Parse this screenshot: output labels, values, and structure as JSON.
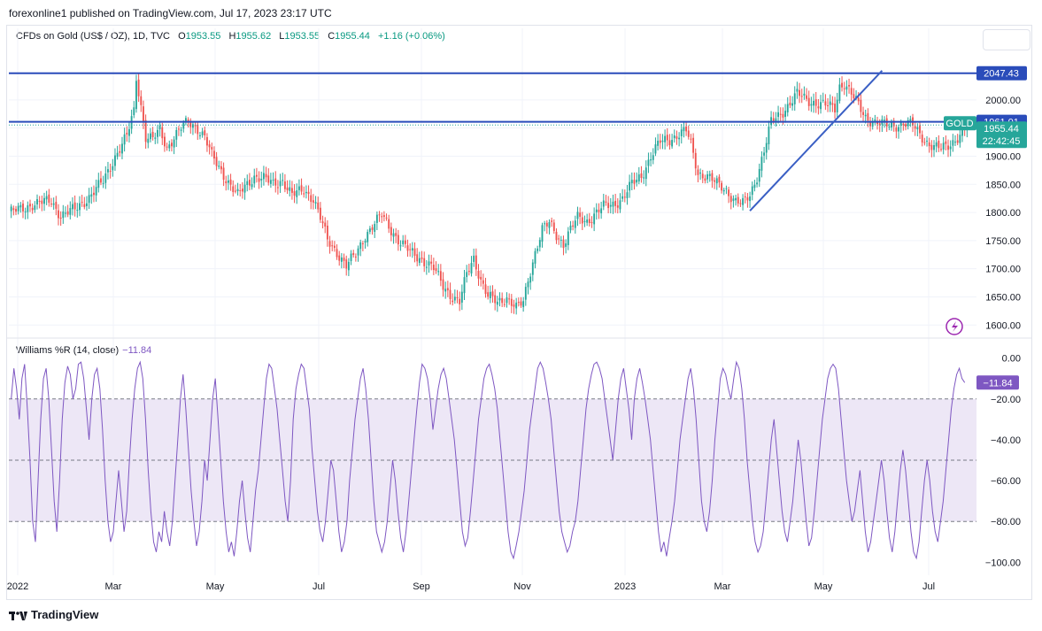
{
  "header": {
    "published": "forexonline1 published on TradingView.com, Jul 17, 2023 23:17 UTC"
  },
  "legend": {
    "title": "CFDs on Gold (US$ / OZ), 1D, TVC",
    "o_label": "O",
    "o": "1953.55",
    "h_label": "H",
    "h": "1955.62",
    "l_label": "L",
    "l": "1953.55",
    "c_label": "C",
    "c": "1955.44",
    "change": "+1.16 (+0.06%)"
  },
  "indicator": {
    "label": "Williams %R (14, close)",
    "value": "−11.84"
  },
  "footer": {
    "brand": "TradingView"
  },
  "colors": {
    "up": "#26a69a",
    "down": "#ef5350",
    "hline": "#2a4cba",
    "trend": "#3a5fc4",
    "wr": "#7e57c2",
    "band": "#ede7f6"
  },
  "chart_data": {
    "type": "candlestick",
    "symbol": "GOLD",
    "timeframe": "1D",
    "x_labels": [
      "2022",
      "Mar",
      "May",
      "Jul",
      "Sep",
      "Nov",
      "2023",
      "Mar",
      "May",
      "Jul"
    ],
    "price_axis": [
      "2000.00",
      "1950.00",
      "1900.00",
      "1850.00",
      "1800.00",
      "1750.00",
      "1700.00",
      "1650.00",
      "1600.00"
    ],
    "ylim": [
      1580,
      2080
    ],
    "close_path": [
      [
        0,
        1800
      ],
      [
        5,
        1805
      ],
      [
        10,
        1815
      ],
      [
        18,
        1820
      ],
      [
        22,
        1795
      ],
      [
        28,
        1805
      ],
      [
        34,
        1828
      ],
      [
        40,
        1855
      ],
      [
        45,
        1900
      ],
      [
        50,
        1935
      ],
      [
        53,
        1980
      ],
      [
        54,
        2040
      ],
      [
        56,
        1990
      ],
      [
        58,
        1935
      ],
      [
        61,
        1930
      ],
      [
        64,
        1945
      ],
      [
        67,
        1915
      ],
      [
        70,
        1935
      ],
      [
        73,
        1950
      ],
      [
        76,
        1960
      ],
      [
        80,
        1950
      ],
      [
        83,
        1935
      ],
      [
        86,
        1900
      ],
      [
        89,
        1880
      ],
      [
        93,
        1855
      ],
      [
        97,
        1830
      ],
      [
        100,
        1845
      ],
      [
        104,
        1865
      ],
      [
        108,
        1860
      ],
      [
        112,
        1850
      ],
      [
        116,
        1858
      ],
      [
        120,
        1830
      ],
      [
        125,
        1840
      ],
      [
        129,
        1825
      ],
      [
        132,
        1790
      ],
      [
        135,
        1750
      ],
      [
        139,
        1730
      ],
      [
        143,
        1705
      ],
      [
        147,
        1725
      ],
      [
        151,
        1760
      ],
      [
        155,
        1780
      ],
      [
        158,
        1795
      ],
      [
        162,
        1770
      ],
      [
        166,
        1745
      ],
      [
        170,
        1730
      ],
      [
        174,
        1720
      ],
      [
        177,
        1710
      ],
      [
        180,
        1700
      ],
      [
        184,
        1670
      ],
      [
        188,
        1650
      ],
      [
        191,
        1640
      ],
      [
        194,
        1690
      ],
      [
        197,
        1720
      ],
      [
        200,
        1680
      ],
      [
        203,
        1650
      ],
      [
        207,
        1640
      ],
      [
        211,
        1650
      ],
      [
        215,
        1630
      ],
      [
        218,
        1640
      ],
      [
        220,
        1680
      ],
      [
        223,
        1730
      ],
      [
        226,
        1770
      ],
      [
        229,
        1780
      ],
      [
        232,
        1760
      ],
      [
        235,
        1745
      ],
      [
        238,
        1770
      ],
      [
        241,
        1790
      ],
      [
        245,
        1785
      ],
      [
        249,
        1800
      ],
      [
        252,
        1810
      ],
      [
        256,
        1815
      ],
      [
        260,
        1825
      ],
      [
        264,
        1850
      ],
      [
        268,
        1865
      ],
      [
        272,
        1900
      ],
      [
        276,
        1925
      ],
      [
        280,
        1930
      ],
      [
        284,
        1940
      ],
      [
        287,
        1945
      ],
      [
        289,
        1920
      ],
      [
        292,
        1870
      ],
      [
        296,
        1865
      ],
      [
        300,
        1850
      ],
      [
        304,
        1840
      ],
      [
        308,
        1820
      ],
      [
        311,
        1815
      ],
      [
        314,
        1830
      ],
      [
        317,
        1865
      ],
      [
        320,
        1910
      ],
      [
        323,
        1960
      ],
      [
        327,
        1975
      ],
      [
        331,
        1995
      ],
      [
        334,
        2010
      ],
      [
        338,
        2000
      ],
      [
        342,
        1995
      ],
      [
        346,
        1990
      ],
      [
        350,
        1985
      ],
      [
        352,
        2025
      ],
      [
        354,
        2030
      ],
      [
        357,
        2010
      ],
      [
        360,
        1990
      ],
      [
        363,
        1970
      ],
      [
        367,
        1960
      ],
      [
        371,
        1955
      ],
      [
        375,
        1955
      ],
      [
        379,
        1958
      ],
      [
        383,
        1955
      ],
      [
        386,
        1940
      ],
      [
        389,
        1925
      ],
      [
        392,
        1915
      ],
      [
        395,
        1913
      ],
      [
        398,
        1920
      ],
      [
        401,
        1930
      ],
      [
        404,
        1940
      ],
      [
        406,
        1955
      ]
    ],
    "support_lines": [
      {
        "label": "2047.43",
        "price": 2047.43
      },
      {
        "label": "1961.01",
        "price": 1961.01
      }
    ],
    "trendline": {
      "from": [
        314,
        1803
      ],
      "to": [
        370,
        2052
      ]
    },
    "last_price": {
      "symbol_label": "GOLD",
      "price": "1955.44",
      "countdown": "22:42:45"
    },
    "williams_r": {
      "axis": [
        "0.00",
        "−20.00",
        "−40.00",
        "−60.00",
        "−80.00",
        "−100.00"
      ],
      "ylim": [
        -102,
        2
      ],
      "levels": [
        -20,
        -50,
        -80
      ],
      "values": [
        -20,
        -5,
        -15,
        -30,
        -10,
        -3,
        -25,
        -50,
        -80,
        -90,
        -60,
        -30,
        -10,
        -5,
        -20,
        -45,
        -70,
        -85,
        -60,
        -30,
        -12,
        -4,
        -8,
        -20,
        -15,
        -3,
        -2,
        -10,
        -25,
        -40,
        -20,
        -8,
        -5,
        -15,
        -35,
        -60,
        -80,
        -90,
        -85,
        -70,
        -55,
        -70,
        -85,
        -75,
        -50,
        -30,
        -15,
        -5,
        -2,
        -10,
        -30,
        -55,
        -75,
        -90,
        -95,
        -85,
        -90,
        -75,
        -85,
        -92,
        -80,
        -60,
        -40,
        -20,
        -8,
        -25,
        -45,
        -65,
        -80,
        -92,
        -85,
        -70,
        -50,
        -60,
        -40,
        -20,
        -10,
        -30,
        -50,
        -70,
        -85,
        -95,
        -90,
        -97,
        -85,
        -70,
        -60,
        -75,
        -88,
        -95,
        -80,
        -65,
        -55,
        -40,
        -25,
        -10,
        -3,
        -5,
        -15,
        -25,
        -40,
        -55,
        -70,
        -80,
        -60,
        -30,
        -15,
        -8,
        -3,
        -5,
        -15,
        -25,
        -45,
        -60,
        -75,
        -85,
        -90,
        -80,
        -65,
        -50,
        -55,
        -70,
        -85,
        -95,
        -90,
        -80,
        -60,
        -45,
        -30,
        -20,
        -10,
        -5,
        -15,
        -30,
        -50,
        -70,
        -85,
        -90,
        -95,
        -90,
        -80,
        -65,
        -50,
        -60,
        -75,
        -88,
        -95,
        -85,
        -70,
        -55,
        -40,
        -25,
        -12,
        -3,
        -5,
        -10,
        -20,
        -35,
        -25,
        -15,
        -8,
        -5,
        -10,
        -20,
        -30,
        -40,
        -55,
        -70,
        -85,
        -92,
        -88,
        -75,
        -60,
        -45,
        -30,
        -20,
        -10,
        -5,
        -3,
        -8,
        -15,
        -25,
        -40,
        -55,
        -70,
        -85,
        -95,
        -98,
        -92,
        -85,
        -75,
        -65,
        -50,
        -35,
        -25,
        -15,
        -5,
        -2,
        -5,
        -12,
        -20,
        -30,
        -45,
        -60,
        -75,
        -85,
        -90,
        -95,
        -92,
        -85,
        -80,
        -70,
        -55,
        -40,
        -25,
        -15,
        -8,
        -3,
        -2,
        -5,
        -10,
        -20,
        -30,
        -40,
        -50,
        -35,
        -20,
        -10,
        -5,
        -15,
        -25,
        -40,
        -20,
        -10,
        -5,
        -12,
        -20,
        -30,
        -40,
        -55,
        -70,
        -85,
        -95,
        -90,
        -97,
        -88,
        -80,
        -70,
        -55,
        -40,
        -30,
        -20,
        -10,
        -5,
        -15,
        -30,
        -50,
        -70,
        -80,
        -85,
        -75,
        -60,
        -40,
        -25,
        -10,
        -5,
        -8,
        -15,
        -20,
        -10,
        -2,
        -5,
        -15,
        -30,
        -50,
        -65,
        -80,
        -90,
        -95,
        -92,
        -85,
        -70,
        -55,
        -40,
        -30,
        -45,
        -60,
        -75,
        -85,
        -90,
        -80,
        -70,
        -55,
        -40,
        -50,
        -65,
        -80,
        -92,
        -88,
        -75,
        -60,
        -45,
        -30,
        -20,
        -10,
        -5,
        -3,
        -5,
        -15,
        -30,
        -45,
        -60,
        -70,
        -80,
        -75,
        -65,
        -55,
        -70,
        -85,
        -95,
        -90,
        -80,
        -70,
        -60,
        -50,
        -60,
        -75,
        -88,
        -95,
        -85,
        -70,
        -55,
        -45,
        -55,
        -70,
        -85,
        -95,
        -98,
        -90,
        -75,
        -60,
        -50,
        -60,
        -75,
        -85,
        -90,
        -80,
        -70,
        -55,
        -40,
        -25,
        -15,
        -8,
        -5,
        -10,
        -12
      ]
    }
  }
}
